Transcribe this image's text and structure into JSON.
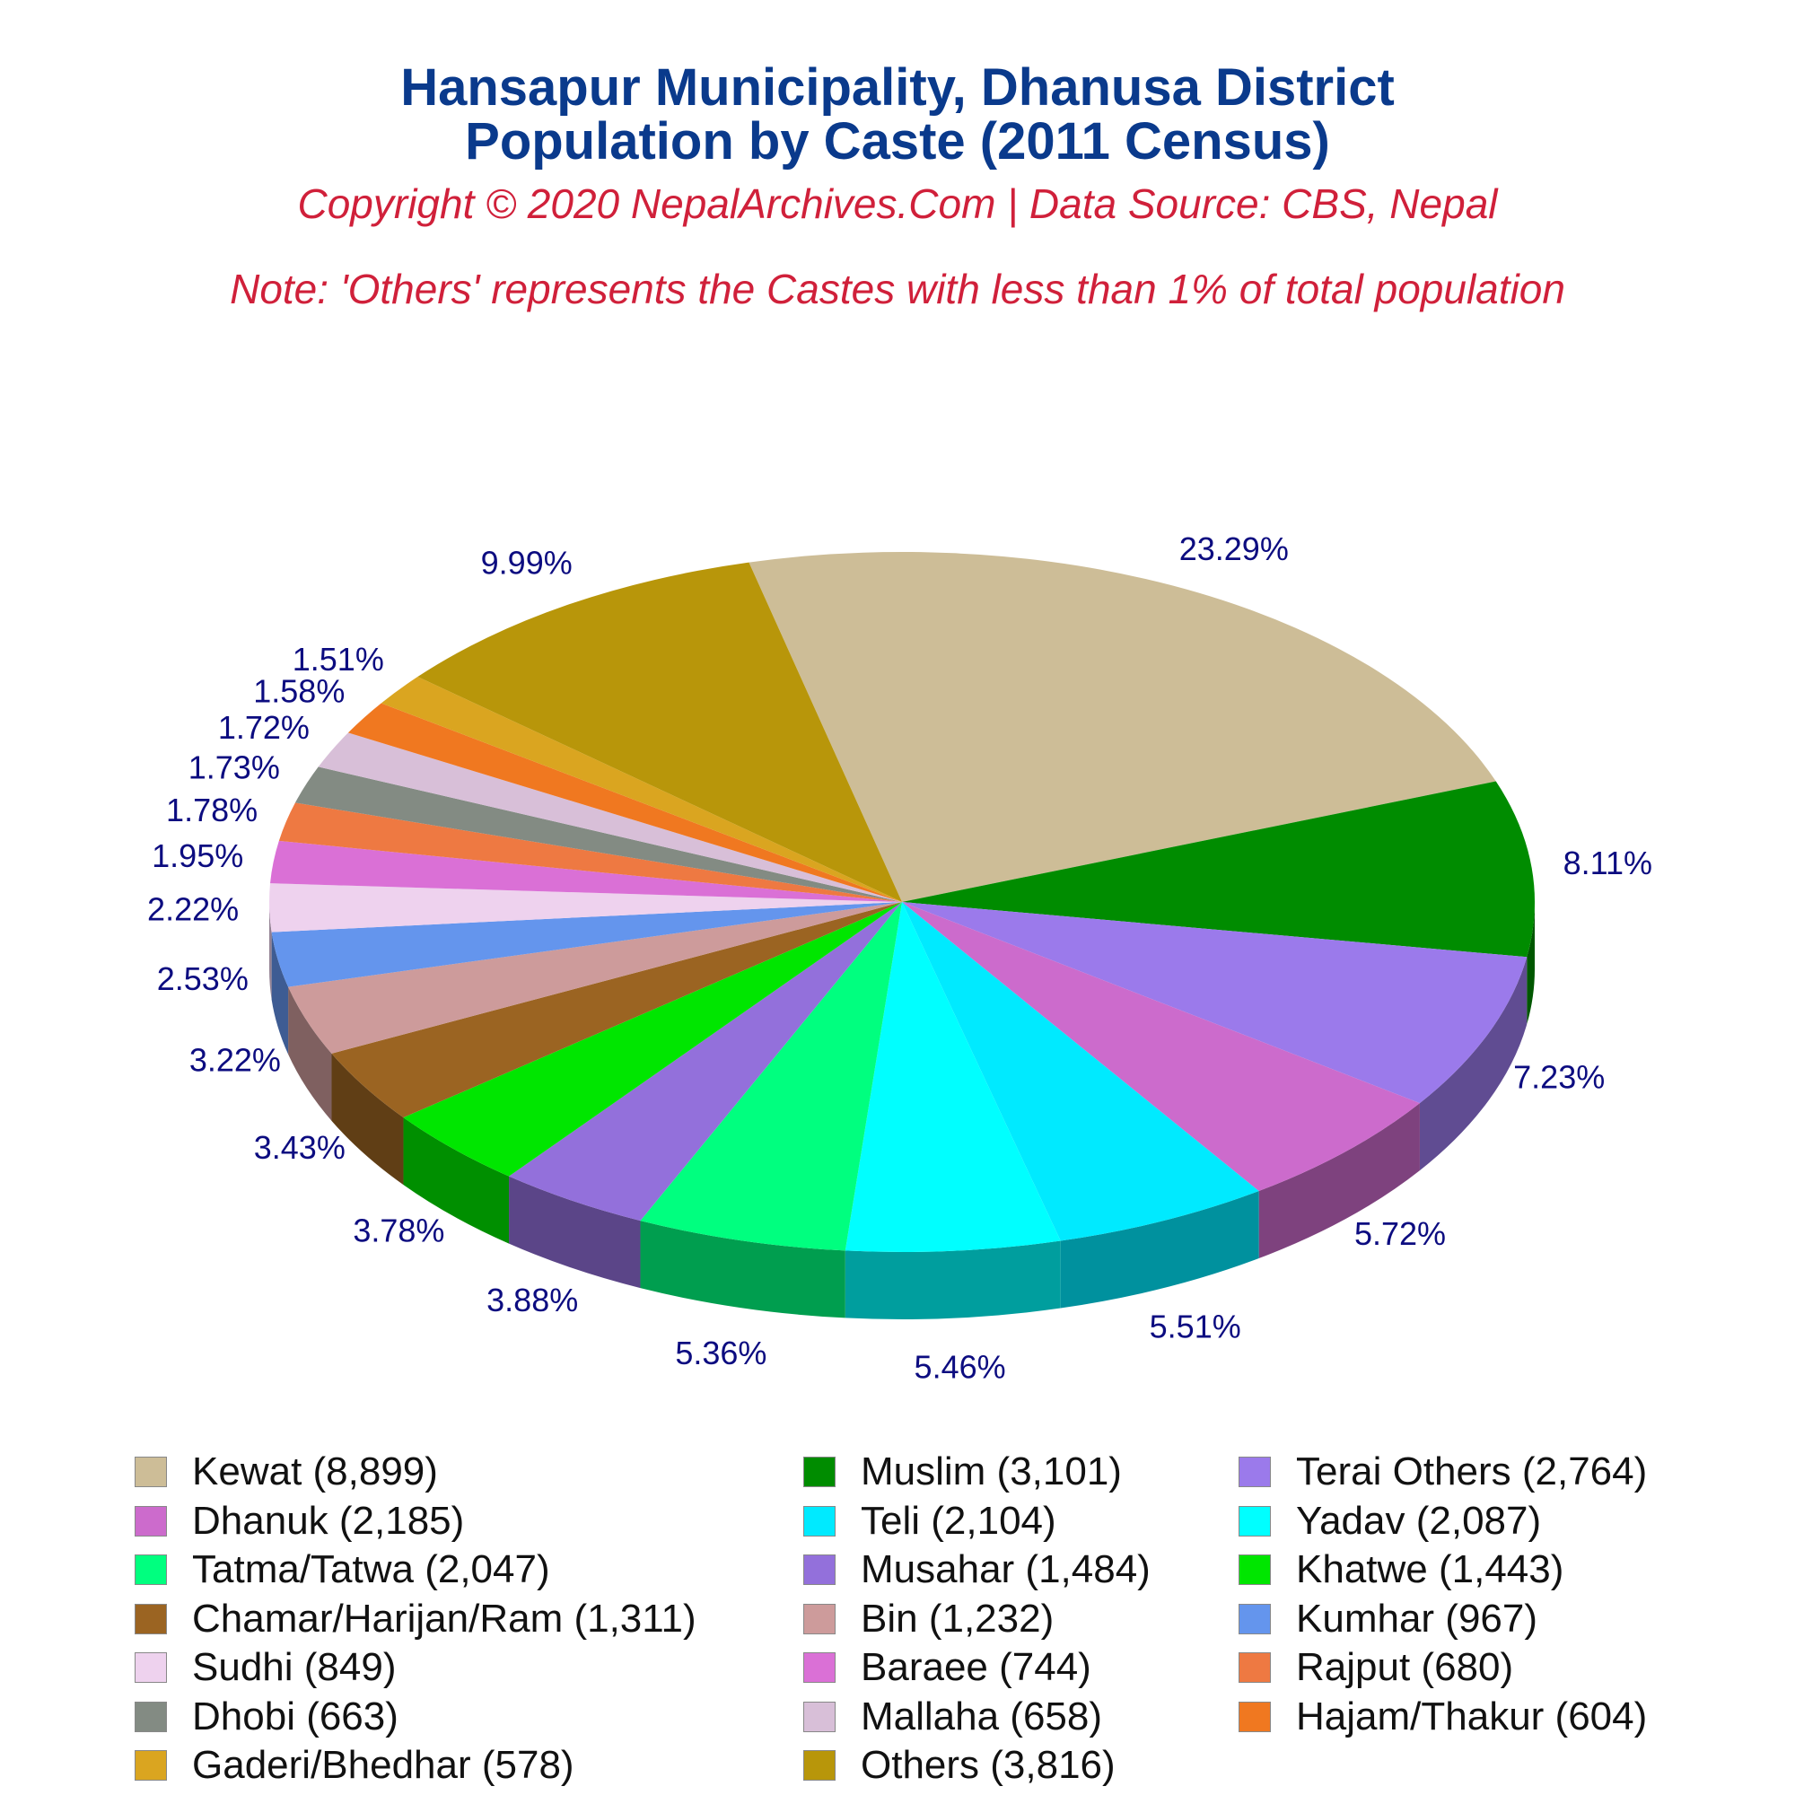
{
  "header": {
    "title_line1": "Hansapur Municipality, Dhanusa District",
    "title_line2": "Population by Caste (2011 Census)",
    "copyright": "Copyright © 2020 NepalArchives.Com | Data Source: CBS, Nepal",
    "note": "Note: 'Others' represents the Castes with less than 1% of total population"
  },
  "chart_data": {
    "type": "pie",
    "style": "3d",
    "title": "Hansapur Municipality, Dhanusa District Population by Caste (2011 Census)",
    "legend_position": "bottom",
    "slices": [
      {
        "label": "Kewat",
        "value": 8899,
        "display": "Kewat (8,899)",
        "percent": "23.29%",
        "color": "#cdbd97"
      },
      {
        "label": "Muslim",
        "value": 3101,
        "display": "Muslim (3,101)",
        "percent": "8.11%",
        "color": "#008c00"
      },
      {
        "label": "Terai Others",
        "value": 2764,
        "display": "Terai Others (2,764)",
        "percent": "7.23%",
        "color": "#9b7aeb"
      },
      {
        "label": "Dhanuk",
        "value": 2185,
        "display": "Dhanuk (2,185)",
        "percent": "5.72%",
        "color": "#cc6bcc"
      },
      {
        "label": "Teli",
        "value": 2104,
        "display": "Teli (2,104)",
        "percent": "5.51%",
        "color": "#00eaff"
      },
      {
        "label": "Yadav",
        "value": 2087,
        "display": "Yadav (2,087)",
        "percent": "5.46%",
        "color": "#00ffff"
      },
      {
        "label": "Tatma/Tatwa",
        "value": 2047,
        "display": "Tatma/Tatwa (2,047)",
        "percent": "5.36%",
        "color": "#00ff7f"
      },
      {
        "label": "Musahar",
        "value": 1484,
        "display": "Musahar (1,484)",
        "percent": "3.88%",
        "color": "#9370db"
      },
      {
        "label": "Khatwe",
        "value": 1443,
        "display": "Khatwe (1,443)",
        "percent": "3.78%",
        "color": "#00e600"
      },
      {
        "label": "Chamar/Harijan/Ram",
        "value": 1311,
        "display": "Chamar/Harijan/Ram (1,311)",
        "percent": "3.43%",
        "color": "#9b6422"
      },
      {
        "label": "Bin",
        "value": 1232,
        "display": "Bin (1,232)",
        "percent": "3.22%",
        "color": "#cd9b9b"
      },
      {
        "label": "Kumhar",
        "value": 967,
        "display": "Kumhar (967)",
        "percent": "2.53%",
        "color": "#6495ed"
      },
      {
        "label": "Sudhi",
        "value": 849,
        "display": "Sudhi (849)",
        "percent": "2.22%",
        "color": "#eed2ee"
      },
      {
        "label": "Baraee",
        "value": 744,
        "display": "Baraee (744)",
        "percent": "1.95%",
        "color": "#da70d6"
      },
      {
        "label": "Rajput",
        "value": 680,
        "display": "Rajput (680)",
        "percent": "1.78%",
        "color": "#ee7942"
      },
      {
        "label": "Dhobi",
        "value": 663,
        "display": "Dhobi (663)",
        "percent": "1.73%",
        "color": "#838b83"
      },
      {
        "label": "Mallaha",
        "value": 658,
        "display": "Mallaha (658)",
        "percent": "1.72%",
        "color": "#d8bfd8"
      },
      {
        "label": "Hajam/Thakur",
        "value": 604,
        "display": "Hajam/Thakur (604)",
        "percent": "1.58%",
        "color": "#f07820"
      },
      {
        "label": "Gaderi/Bhedhar",
        "value": 578,
        "display": "Gaderi/Bhedhar (578)",
        "percent": "1.51%",
        "color": "#daa520"
      },
      {
        "label": "Others",
        "value": 3816,
        "display": "Others (3,816)",
        "percent": "9.99%",
        "color": "#b8960a"
      }
    ]
  }
}
